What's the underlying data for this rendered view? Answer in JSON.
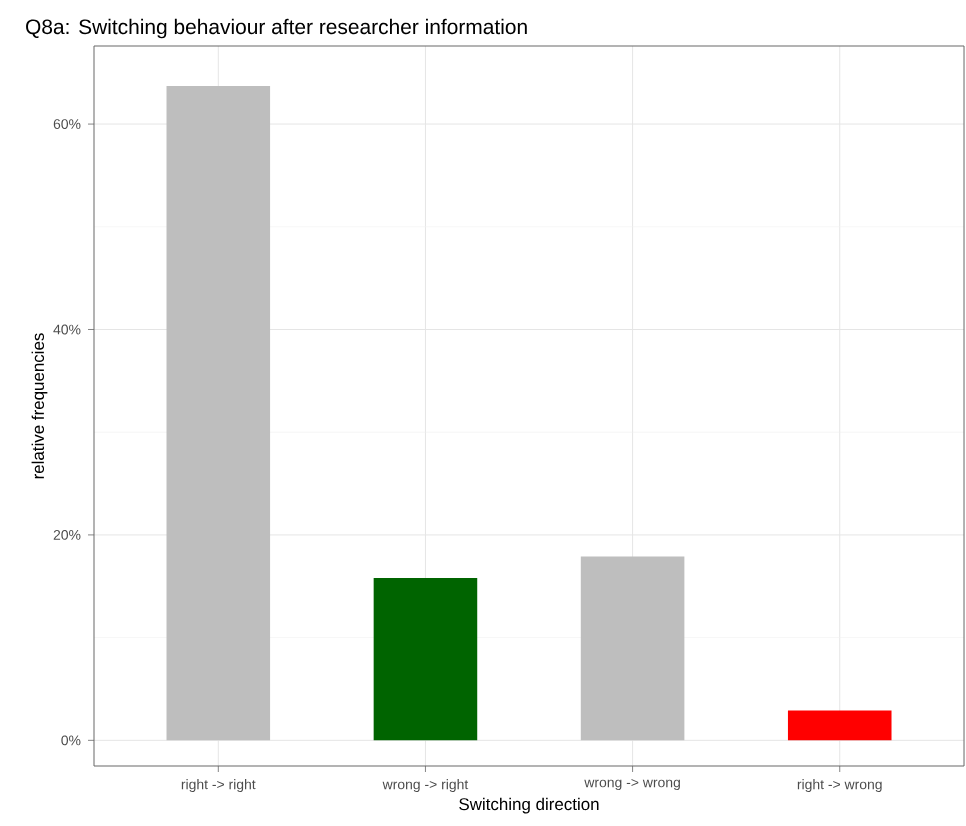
{
  "chart_data": {
    "type": "bar",
    "title": "Q8a: Switching behaviour after researcher information",
    "xlabel": "Switching direction",
    "ylabel": "relative frequencies",
    "categories": [
      "right -> right",
      "wrong -> right",
      "wrong -> wrong",
      "right -> wrong"
    ],
    "values": [
      63.7,
      15.8,
      17.9,
      2.9
    ],
    "colors": [
      "#bebebe",
      "#006400",
      "#bebebe",
      "#ff0000"
    ],
    "ylim": [
      -2.5,
      67.6
    ],
    "yticks": [
      {
        "value": 0,
        "label": "0%"
      },
      {
        "value": 20,
        "label": "20%"
      },
      {
        "value": 40,
        "label": "40%"
      },
      {
        "value": 60,
        "label": "60%"
      }
    ],
    "grid": true
  }
}
